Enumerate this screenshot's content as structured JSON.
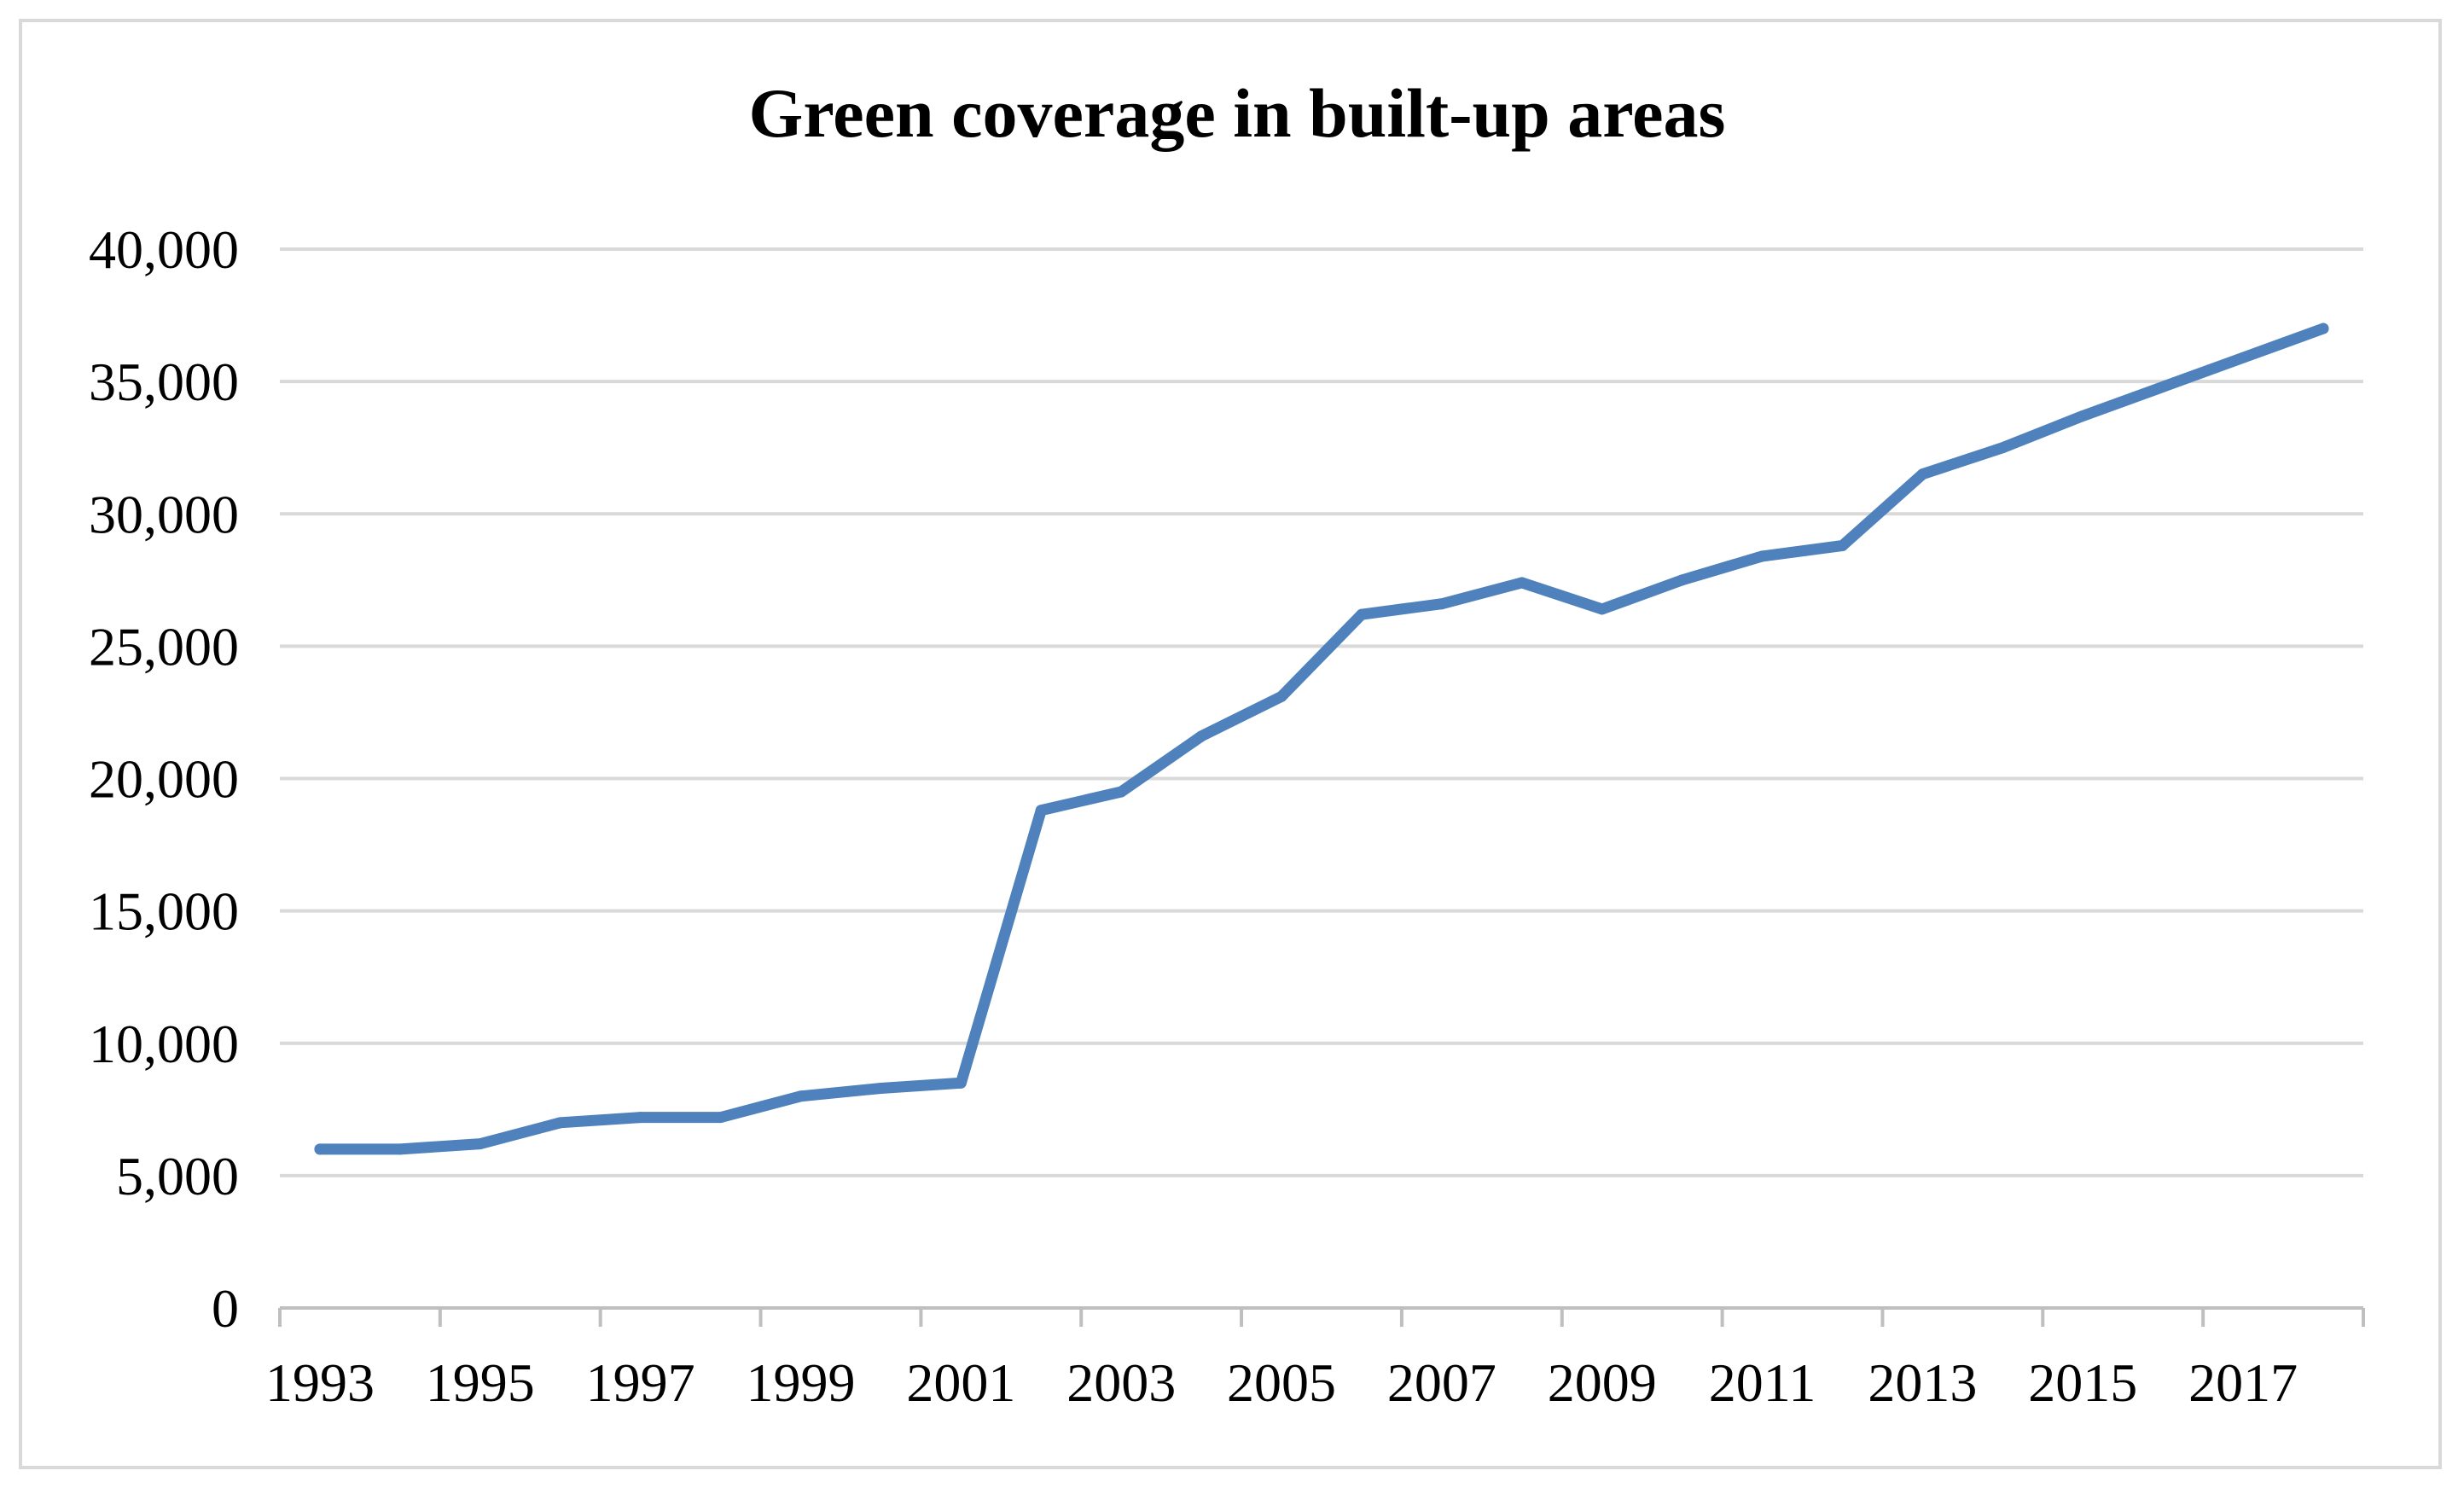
{
  "chart_data": {
    "type": "line",
    "title": "Green coverage in built-up areas",
    "xlabel": "",
    "ylabel": "",
    "ylim": [
      0,
      40000
    ],
    "yticks": [
      0,
      5000,
      10000,
      15000,
      20000,
      25000,
      30000,
      35000,
      40000
    ],
    "ytick_labels": [
      "0",
      "5,000",
      "10,000",
      "15,000",
      "20,000",
      "25,000",
      "30,000",
      "35,000",
      "40,000"
    ],
    "xtick_labels": [
      "1993",
      "1995",
      "1997",
      "1999",
      "2001",
      "2003",
      "2005",
      "2007",
      "2009",
      "2011",
      "2013",
      "2015",
      "2017"
    ],
    "grid": true,
    "legend": "none",
    "series": [
      {
        "name": "Green coverage",
        "color": "#4f81bd",
        "x": [
          1993,
          1994,
          1995,
          1996,
          1997,
          1998,
          1999,
          2000,
          2001,
          2002,
          2003,
          2004,
          2005,
          2006,
          2007,
          2008,
          2009,
          2010,
          2011,
          2012,
          2013,
          2014,
          2015,
          2016,
          2017,
          2018
        ],
        "values": [
          6000,
          6000,
          6200,
          7000,
          7200,
          7200,
          8000,
          8300,
          8500,
          18800,
          19500,
          21600,
          23100,
          26200,
          26600,
          27400,
          26400,
          27500,
          28400,
          28800,
          31500,
          32500,
          33700,
          34800,
          35900,
          37000
        ]
      }
    ]
  },
  "colors": {
    "line": "#4f81bd",
    "grid": "#d9d9d9",
    "axis": "#bfbfbf",
    "frame": "#d9d9d9"
  }
}
